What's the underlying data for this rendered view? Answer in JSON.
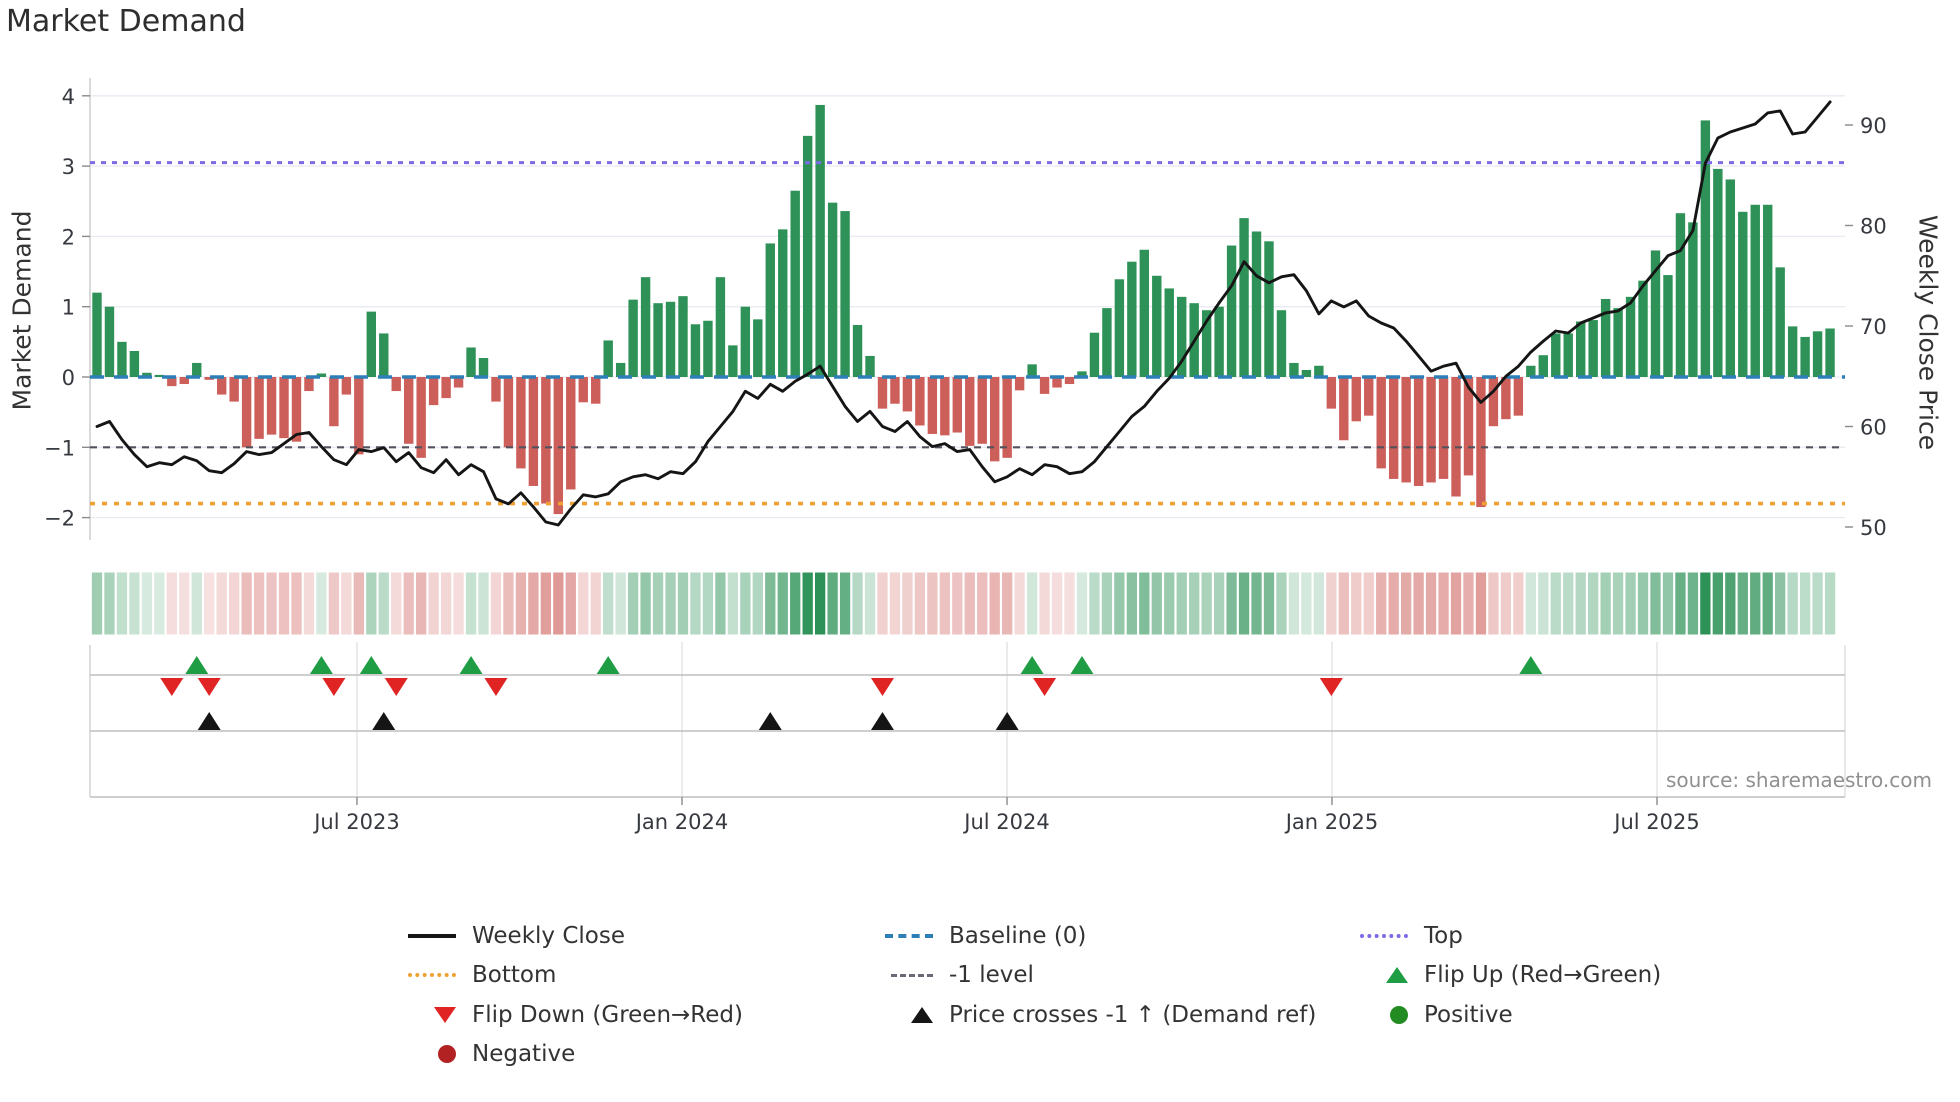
{
  "title": "Market Demand",
  "left_axis_label": "Market Demand",
  "right_axis_label": "Weekly Close Price",
  "source_text": "source: sharemaestro.com",
  "colors": {
    "bar_positive": "#2e9258",
    "bar_negative": "#cd5f5b",
    "price_line": "#151515",
    "baseline": "#2e7fb8",
    "top_line": "#7b6ce6",
    "minus1_line": "#52525e",
    "bottom_line": "#f0a133",
    "grid": "#eaeaf2",
    "flip_up_marker": "#1f9d44",
    "flip_down_marker": "#e02424",
    "price_cross_marker": "#151515",
    "positive_dot": "#228b22",
    "negative_dot": "#b22222"
  },
  "chart_data": {
    "type": "bar+line",
    "title": "Market Demand",
    "n_weeks": 140,
    "ylabel_left": "Market Demand",
    "ylabel_right": "Weekly Close Price",
    "ylim_left": [
      -2.4,
      4.25
    ],
    "grid": "horizontal",
    "left_axis_ticks": [
      {
        "label": "4",
        "value": 4
      },
      {
        "label": "3",
        "value": 3
      },
      {
        "label": "2",
        "value": 2
      },
      {
        "label": "1",
        "value": 1
      },
      {
        "label": "0",
        "value": 0
      },
      {
        "label": "−1",
        "value": -1
      },
      {
        "label": "−2",
        "value": -2
      }
    ],
    "right_axis_ticks": [
      {
        "label": "90",
        "value": 90
      },
      {
        "label": "80",
        "value": 80
      },
      {
        "label": "70",
        "value": 70
      },
      {
        "label": "60",
        "value": 60
      },
      {
        "label": "50",
        "value": 50
      }
    ],
    "x_ticks": [
      {
        "label": "Jul 2023",
        "index": 20.85
      },
      {
        "label": "Jan 2024",
        "index": 46.92
      },
      {
        "label": "Jul 2024",
        "index": 72.99
      },
      {
        "label": "Jan 2025",
        "index": 99.05
      },
      {
        "label": "Jul 2025",
        "index": 125.12
      }
    ],
    "series": [
      {
        "name": "Market Demand",
        "type": "bar",
        "axis": "left",
        "values": [
          1.2,
          1.0,
          0.5,
          0.37,
          0.06,
          0.03,
          -0.13,
          -0.1,
          0.2,
          -0.04,
          -0.25,
          -0.35,
          -1.0,
          -0.88,
          -0.82,
          -0.87,
          -0.92,
          -0.2,
          0.05,
          -0.7,
          -0.25,
          -1.1,
          0.93,
          0.62,
          -0.2,
          -0.95,
          -1.15,
          -0.4,
          -0.3,
          -0.15,
          0.42,
          0.27,
          -0.35,
          -1.0,
          -1.3,
          -1.55,
          -1.8,
          -1.95,
          -1.6,
          -0.36,
          -0.38,
          0.52,
          0.2,
          1.1,
          1.42,
          1.05,
          1.07,
          1.15,
          0.75,
          0.8,
          1.42,
          0.45,
          1.0,
          0.82,
          1.9,
          2.1,
          2.65,
          3.43,
          3.87,
          2.48,
          2.36,
          0.74,
          0.3,
          -0.45,
          -0.38,
          -0.49,
          -0.69,
          -0.81,
          -0.83,
          -0.79,
          -0.98,
          -0.95,
          -1.2,
          -1.15,
          -0.19,
          0.18,
          -0.24,
          -0.15,
          -0.1,
          0.08,
          0.63,
          0.98,
          1.39,
          1.64,
          1.81,
          1.44,
          1.26,
          1.14,
          1.05,
          0.95,
          1.0,
          1.87,
          2.26,
          2.07,
          1.93,
          0.95,
          0.2,
          0.1,
          0.16,
          -0.45,
          -0.9,
          -0.63,
          -0.55,
          -1.3,
          -1.45,
          -1.5,
          -1.55,
          -1.5,
          -1.45,
          -1.7,
          -1.4,
          -1.85,
          -0.7,
          -0.6,
          -0.55,
          0.16,
          0.31,
          0.62,
          0.62,
          0.79,
          0.81,
          1.11,
          0.98,
          1.14,
          1.37,
          1.8,
          1.45,
          2.33,
          2.2,
          3.65,
          2.96,
          2.81,
          2.35,
          2.45,
          2.45,
          1.56,
          0.72,
          0.57,
          0.65,
          0.69
        ]
      },
      {
        "name": "Weekly Close",
        "type": "line",
        "axis": "right",
        "values": [
          60.0,
          60.5,
          58.7,
          57.2,
          56.0,
          56.4,
          56.2,
          57.0,
          56.6,
          55.6,
          55.4,
          56.3,
          57.5,
          57.2,
          57.4,
          58.3,
          59.2,
          59.4,
          58.0,
          56.7,
          56.2,
          57.7,
          57.5,
          57.9,
          56.5,
          57.4,
          55.9,
          55.4,
          56.7,
          55.2,
          56.2,
          55.5,
          52.8,
          52.3,
          53.4,
          52.0,
          50.5,
          50.2,
          51.8,
          53.2,
          53.0,
          53.3,
          54.5,
          55.0,
          55.2,
          54.8,
          55.5,
          55.3,
          56.5,
          58.5,
          60.0,
          61.5,
          63.5,
          62.8,
          64.2,
          63.5,
          64.5,
          65.2,
          66.0,
          64.0,
          62.0,
          60.5,
          61.5,
          60.0,
          59.5,
          60.5,
          59.0,
          58.0,
          58.3,
          57.5,
          57.7,
          56.0,
          54.5,
          55.0,
          55.8,
          55.2,
          56.2,
          56.0,
          55.3,
          55.5,
          56.5,
          58.0,
          59.5,
          61.0,
          62.0,
          63.5,
          64.8,
          66.5,
          68.5,
          70.5,
          72.3,
          74.0,
          76.4,
          75.0,
          74.3,
          74.9,
          75.1,
          73.5,
          71.2,
          72.5,
          71.9,
          72.5,
          71.0,
          70.3,
          69.8,
          68.5,
          67.0,
          65.5,
          66.0,
          66.3,
          63.9,
          62.4,
          63.5,
          65.0,
          66.0,
          67.4,
          68.5,
          69.5,
          69.3,
          70.3,
          70.8,
          71.3,
          71.5,
          72.3,
          74.0,
          75.5,
          77.0,
          77.5,
          79.5,
          86.2,
          88.7,
          89.3,
          89.7,
          90.1,
          91.2,
          91.4,
          89.1,
          89.3,
          90.8,
          92.3
        ]
      }
    ],
    "reference_lines": [
      {
        "name": "Top",
        "value": 3.05,
        "style": "dotted",
        "color": "#7b6ce6"
      },
      {
        "name": "Baseline (0)",
        "value": 0,
        "style": "dashed",
        "color": "#2e7fb8"
      },
      {
        "name": "-1 level",
        "value": -1,
        "style": "dashed",
        "color": "#52525e"
      },
      {
        "name": "Bottom",
        "value": -1.8,
        "style": "dotted",
        "color": "#f0a133"
      }
    ],
    "markers": {
      "flip_up_indices": [
        8,
        18,
        22,
        30,
        41,
        75,
        79,
        115
      ],
      "flip_down_indices": [
        6,
        9,
        19,
        24,
        32,
        63,
        76,
        99
      ],
      "price_cross_indices": [
        9,
        23,
        54,
        63,
        73
      ]
    },
    "heatmap_strip": "demand sign/intensity per week, derived from Market Demand bar values",
    "legend_position": "bottom"
  },
  "legend": {
    "columns": [
      [
        {
          "icon": "line-black",
          "label": "Weekly Close"
        },
        {
          "icon": "dotted-orange",
          "label": "Bottom"
        },
        {
          "icon": "triangle-down-red",
          "label": "Flip Down (Green→Red)"
        },
        {
          "icon": "circle-darkred",
          "label": "Negative"
        }
      ],
      [
        {
          "icon": "dashed-blue",
          "label": "Baseline (0)"
        },
        {
          "icon": "dashed-gray",
          "label": "-1 level"
        },
        {
          "icon": "triangle-up-black",
          "label": "Price crosses -1 ↑ (Demand ref)"
        }
      ],
      [
        {
          "icon": "dotted-purple",
          "label": "Top"
        },
        {
          "icon": "triangle-up-green",
          "label": "Flip Up (Red→Green)"
        },
        {
          "icon": "circle-green",
          "label": "Positive"
        }
      ]
    ]
  }
}
